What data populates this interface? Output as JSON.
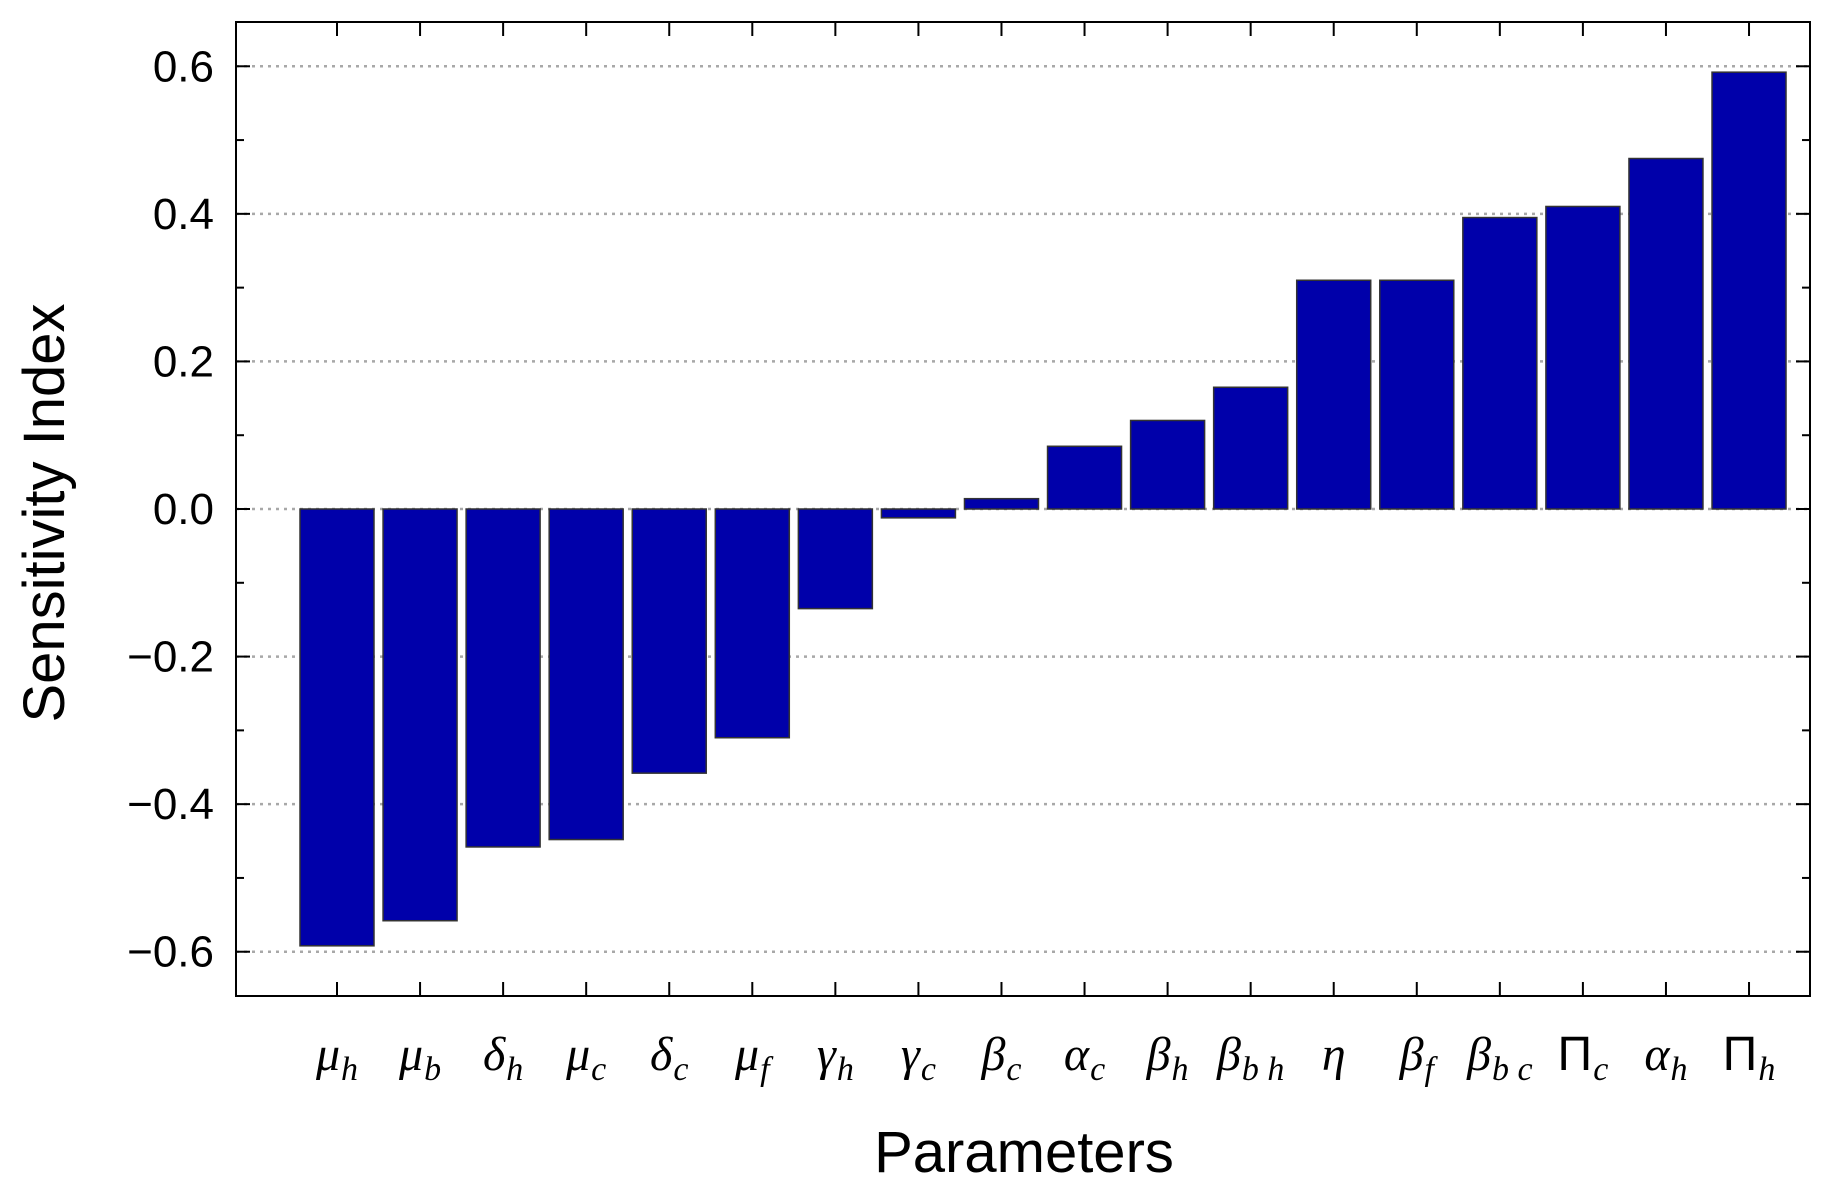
{
  "chart_data": {
    "type": "bar",
    "xlabel": "Parameters",
    "ylabel": "Sensitivity Index",
    "ylim": [
      -0.66,
      0.66
    ],
    "yticks": [
      -0.6,
      -0.4,
      -0.2,
      0.0,
      0.2,
      0.4,
      0.6
    ],
    "ytick_labels": [
      "−0.6",
      "−0.4",
      "−0.2",
      "0.0",
      "0.2",
      "0.4",
      "0.6"
    ],
    "grid": "horizontal-dotted",
    "bar_color": "#0000aa",
    "categories": [
      {
        "sym": "μ",
        "sub": "h",
        "upright": false
      },
      {
        "sym": "μ",
        "sub": "b",
        "upright": false
      },
      {
        "sym": "δ",
        "sub": "h",
        "upright": false
      },
      {
        "sym": "μ",
        "sub": "c",
        "upright": false
      },
      {
        "sym": "δ",
        "sub": "c",
        "upright": false
      },
      {
        "sym": "μ",
        "sub": "f",
        "upright": false
      },
      {
        "sym": "γ",
        "sub": "h",
        "upright": false
      },
      {
        "sym": "γ",
        "sub": "c",
        "upright": false
      },
      {
        "sym": "β",
        "sub": "c",
        "upright": false
      },
      {
        "sym": "α",
        "sub": "c",
        "upright": false
      },
      {
        "sym": "β",
        "sub": "h",
        "upright": false
      },
      {
        "sym": "β",
        "sub": "b h",
        "upright": false
      },
      {
        "sym": "η",
        "sub": "",
        "upright": false
      },
      {
        "sym": "β",
        "sub": "f",
        "upright": false
      },
      {
        "sym": "β",
        "sub": "b c",
        "upright": false
      },
      {
        "sym": "Π",
        "sub": "c",
        "upright": true
      },
      {
        "sym": "α",
        "sub": "h",
        "upright": false
      },
      {
        "sym": "Π",
        "sub": "h",
        "upright": true
      }
    ],
    "values": [
      -0.592,
      -0.558,
      -0.458,
      -0.448,
      -0.358,
      -0.31,
      -0.135,
      -0.012,
      0.014,
      0.085,
      0.12,
      0.165,
      0.31,
      0.31,
      0.395,
      0.41,
      0.475,
      0.592
    ]
  }
}
